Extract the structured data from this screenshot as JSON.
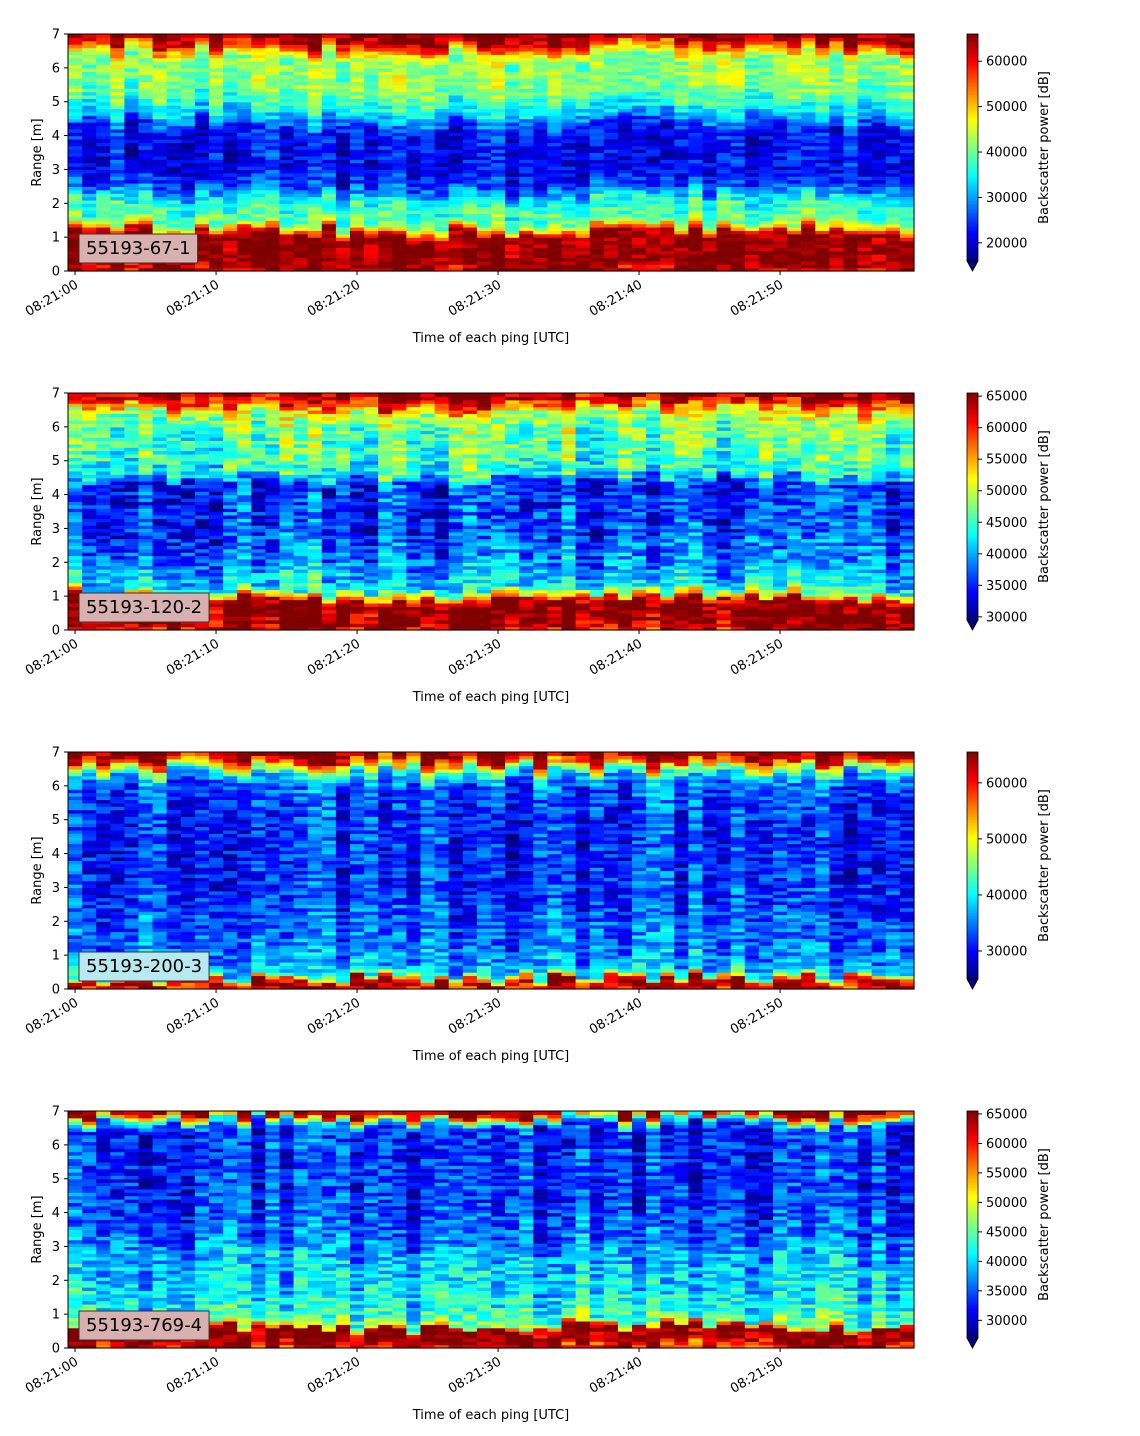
{
  "chart_data": [
    {
      "type": "heatmap",
      "label": "55193-67-1",
      "label_bg": "#d8b0b0",
      "xlabel": "Time of each ping [UTC]",
      "ylabel": "Range [m]",
      "colorbar_label": "Backscatter power [dB]",
      "colormap": "jet",
      "x_ticks": [
        "08:21:00",
        "08:21:10",
        "08:21:20",
        "08:21:30",
        "08:21:40",
        "08:21:50"
      ],
      "y_ticks": [
        0,
        1,
        2,
        3,
        4,
        5,
        6,
        7
      ],
      "xlim": [
        "08:20:59.5",
        "08:21:59.5"
      ],
      "ylim": [
        0,
        7
      ],
      "clim": [
        16000,
        66000
      ],
      "colorbar_ticks": [
        20000,
        30000,
        40000,
        50000,
        60000
      ],
      "colorbar_extend": "min",
      "profile": [
        [
          0.0,
          62000
        ],
        [
          0.2,
          66000
        ],
        [
          1.1,
          66000
        ],
        [
          1.25,
          52000
        ],
        [
          1.45,
          40000
        ],
        [
          2.1,
          37000
        ],
        [
          2.4,
          28000
        ],
        [
          3.0,
          22000
        ],
        [
          4.2,
          23000
        ],
        [
          4.6,
          32000
        ],
        [
          5.2,
          40000
        ],
        [
          5.8,
          43000
        ],
        [
          6.3,
          42000
        ],
        [
          6.6,
          54000
        ],
        [
          6.8,
          64000
        ],
        [
          7.0,
          66000
        ]
      ]
    },
    {
      "type": "heatmap",
      "label": "55193-120-2",
      "label_bg": "#d8b0b0",
      "xlabel": "Time of each ping [UTC]",
      "ylabel": "Range [m]",
      "colorbar_label": "Backscatter power [dB]",
      "colormap": "jet",
      "x_ticks": [
        "08:21:00",
        "08:21:10",
        "08:21:20",
        "08:21:30",
        "08:21:40",
        "08:21:50"
      ],
      "y_ticks": [
        0,
        1,
        2,
        3,
        4,
        5,
        6,
        7
      ],
      "xlim": [
        "08:20:59.5",
        "08:21:59.5"
      ],
      "ylim": [
        0,
        7
      ],
      "clim": [
        29500,
        65500
      ],
      "colorbar_ticks": [
        30000,
        35000,
        40000,
        45000,
        50000,
        55000,
        60000,
        65000
      ],
      "colorbar_extend": "min",
      "profile": [
        [
          0.0,
          62000
        ],
        [
          0.2,
          65500
        ],
        [
          0.85,
          65500
        ],
        [
          1.0,
          54000
        ],
        [
          1.2,
          43000
        ],
        [
          2.0,
          39000
        ],
        [
          3.0,
          36000
        ],
        [
          4.4,
          35500
        ],
        [
          4.6,
          44000
        ],
        [
          5.2,
          46000
        ],
        [
          6.0,
          47000
        ],
        [
          6.4,
          50000
        ],
        [
          6.7,
          60000
        ],
        [
          7.0,
          65500
        ]
      ]
    },
    {
      "type": "heatmap",
      "label": "55193-200-3",
      "label_bg": "#b8e8f0",
      "xlabel": "Time of each ping [UTC]",
      "ylabel": "Range [m]",
      "colorbar_label": "Backscatter power [dB]",
      "colormap": "jet",
      "x_ticks": [
        "08:21:00",
        "08:21:10",
        "08:21:20",
        "08:21:30",
        "08:21:40",
        "08:21:50"
      ],
      "y_ticks": [
        0,
        1,
        2,
        3,
        4,
        5,
        6,
        7
      ],
      "xlim": [
        "08:20:59.5",
        "08:21:59.5"
      ],
      "ylim": [
        0,
        7
      ],
      "clim": [
        25000,
        65500
      ],
      "colorbar_ticks": [
        30000,
        40000,
        50000,
        60000
      ],
      "colorbar_extend": "min",
      "profile": [
        [
          0.0,
          60000
        ],
        [
          0.1,
          65500
        ],
        [
          0.3,
          60000
        ],
        [
          0.45,
          40000
        ],
        [
          0.8,
          36000
        ],
        [
          1.5,
          34000
        ],
        [
          3.0,
          31500
        ],
        [
          5.0,
          31000
        ],
        [
          6.0,
          33000
        ],
        [
          6.4,
          40000
        ],
        [
          6.7,
          55000
        ],
        [
          6.9,
          65500
        ],
        [
          7.0,
          65500
        ]
      ]
    },
    {
      "type": "heatmap",
      "label": "55193-769-4",
      "label_bg": "#d8b0b0",
      "xlabel": "Time of each ping [UTC]",
      "ylabel": "Range [m]",
      "colorbar_label": "Backscatter power [dB]",
      "colormap": "jet",
      "x_ticks": [
        "08:21:00",
        "08:21:10",
        "08:21:20",
        "08:21:30",
        "08:21:40",
        "08:21:50"
      ],
      "y_ticks": [
        0,
        1,
        2,
        3,
        4,
        5,
        6,
        7
      ],
      "xlim": [
        "08:20:59.5",
        "08:21:59.5"
      ],
      "ylim": [
        0,
        7
      ],
      "clim": [
        27000,
        65500
      ],
      "colorbar_ticks": [
        30000,
        35000,
        40000,
        45000,
        50000,
        55000,
        60000,
        65000
      ],
      "colorbar_extend": "min",
      "profile": [
        [
          0.0,
          60000
        ],
        [
          0.25,
          65500
        ],
        [
          0.6,
          65500
        ],
        [
          0.7,
          46000
        ],
        [
          0.9,
          44000
        ],
        [
          1.5,
          41000
        ],
        [
          2.5,
          39000
        ],
        [
          3.5,
          35000
        ],
        [
          4.5,
          33500
        ],
        [
          6.5,
          33000
        ],
        [
          6.7,
          40000
        ],
        [
          6.9,
          60000
        ],
        [
          7.0,
          65500
        ]
      ]
    }
  ]
}
